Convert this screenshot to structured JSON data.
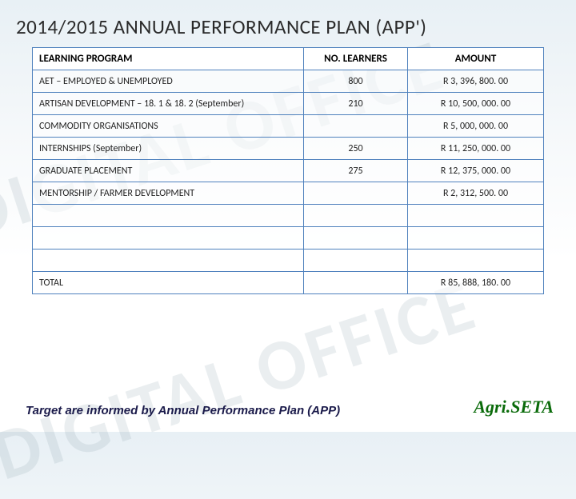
{
  "title": "2014/2015 ANNUAL PERFORMANCE PLAN (APP')",
  "watermark": "DIGITAL OFFICE",
  "table": {
    "headers": {
      "program": "LEARNING PROGRAM",
      "learners": "NO. LEARNERS",
      "amount": "AMOUNT"
    },
    "rows": [
      {
        "program": "AET – EMPLOYED & UNEMPLOYED",
        "learners": "800",
        "amount": "R 3, 396, 800. 00"
      },
      {
        "program": "ARTISAN DEVELOPMENT – 18. 1 & 18. 2 (September)",
        "learners": "210",
        "amount": "R 10, 500, 000. 00"
      },
      {
        "program": "COMMODITY ORGANISATIONS",
        "learners": "",
        "amount": "R 5, 000, 000. 00"
      },
      {
        "program": "INTERNSHIPS  (September)",
        "learners": "250",
        "amount": "R 11, 250, 000. 00"
      },
      {
        "program": "GRADUATE PLACEMENT",
        "learners": "275",
        "amount": "R 12, 375, 000. 00"
      },
      {
        "program": "MENTORSHIP / FARMER DEVELOPMENT",
        "learners": "",
        "amount": "R 2, 312, 500. 00"
      },
      {
        "program": "",
        "learners": "",
        "amount": ""
      },
      {
        "program": "",
        "learners": "",
        "amount": ""
      },
      {
        "program": "",
        "learners": "",
        "amount": ""
      },
      {
        "program": "TOTAL",
        "learners": "",
        "amount": "R 85, 888, 180. 00"
      }
    ]
  },
  "footnote": "Target are informed by Annual Performance Plan (APP)",
  "brand": "Agri.SETA"
}
